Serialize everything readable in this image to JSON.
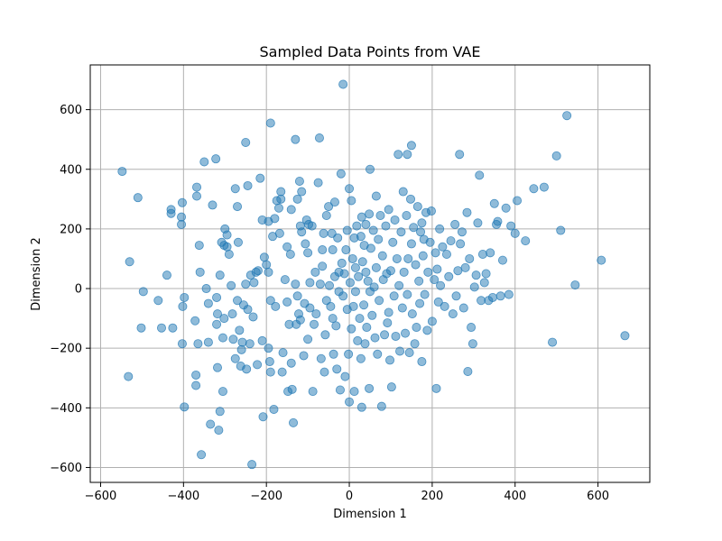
{
  "chart_data": {
    "type": "scatter",
    "title": "Sampled Data Points from VAE",
    "xlabel": "Dimension 1",
    "ylabel": "Dimension 2",
    "xlim": [
      -625,
      725
    ],
    "ylim": [
      -650,
      750
    ],
    "xticks": [
      -600,
      -400,
      -200,
      0,
      200,
      400,
      600
    ],
    "yticks": [
      -600,
      -400,
      -200,
      0,
      200,
      400,
      600
    ],
    "xtick_labels": [
      "−600",
      "−400",
      "−200",
      "0",
      "200",
      "400",
      "600"
    ],
    "ytick_labels": [
      "−600",
      "−400",
      "−200",
      "0",
      "200",
      "400",
      "600"
    ],
    "grid": true,
    "point_color": "#1f77b4",
    "point_alpha": 0.5,
    "points": [
      [
        -548,
        393
      ],
      [
        -530,
        90
      ],
      [
        -533,
        -295
      ],
      [
        -510,
        305
      ],
      [
        -497,
        -10
      ],
      [
        -502,
        -132
      ],
      [
        -461,
        -40
      ],
      [
        -453,
        -132
      ],
      [
        -440,
        45
      ],
      [
        -430,
        265
      ],
      [
        -430,
        252
      ],
      [
        -426,
        -132
      ],
      [
        -405,
        215
      ],
      [
        -405,
        240
      ],
      [
        -403,
        288
      ],
      [
        -403,
        -185
      ],
      [
        -398,
        -30
      ],
      [
        -402,
        -60
      ],
      [
        -398,
        -397
      ],
      [
        -370,
        -290
      ],
      [
        -370,
        -325
      ],
      [
        -372,
        -108
      ],
      [
        -368,
        310
      ],
      [
        -368,
        340
      ],
      [
        -365,
        -185
      ],
      [
        -362,
        145
      ],
      [
        -360,
        55
      ],
      [
        -357,
        -557
      ],
      [
        -350,
        425
      ],
      [
        -345,
        0
      ],
      [
        -340,
        -50
      ],
      [
        -340,
        -180
      ],
      [
        -335,
        -455
      ],
      [
        -330,
        280
      ],
      [
        -322,
        435
      ],
      [
        -320,
        -30
      ],
      [
        -318,
        -85
      ],
      [
        -320,
        -120
      ],
      [
        -318,
        -265
      ],
      [
        -315,
        -475
      ],
      [
        -312,
        45
      ],
      [
        -312,
        -412
      ],
      [
        -308,
        155
      ],
      [
        -305,
        -165
      ],
      [
        -305,
        -345
      ],
      [
        -302,
        -100
      ],
      [
        -302,
        145
      ],
      [
        -300,
        200
      ],
      [
        -295,
        180
      ],
      [
        -295,
        140
      ],
      [
        -290,
        115
      ],
      [
        -285,
        10
      ],
      [
        -282,
        -85
      ],
      [
        -280,
        -170
      ],
      [
        -275,
        335
      ],
      [
        -275,
        -235
      ],
      [
        -270,
        275
      ],
      [
        -268,
        155
      ],
      [
        -270,
        -40
      ],
      [
        -265,
        -140
      ],
      [
        -262,
        -260
      ],
      [
        -260,
        -205
      ],
      [
        -258,
        -180
      ],
      [
        -255,
        -55
      ],
      [
        -250,
        490
      ],
      [
        -250,
        15
      ],
      [
        -245,
        345
      ],
      [
        -248,
        -270
      ],
      [
        -245,
        -70
      ],
      [
        -240,
        -185
      ],
      [
        -238,
        45
      ],
      [
        -235,
        -590
      ],
      [
        -232,
        -95
      ],
      [
        -230,
        20
      ],
      [
        -225,
        55
      ],
      [
        -222,
        -255
      ],
      [
        -220,
        60
      ],
      [
        -215,
        370
      ],
      [
        -210,
        230
      ],
      [
        -205,
        105
      ],
      [
        -210,
        -175
      ],
      [
        -208,
        -430
      ],
      [
        -200,
        80
      ],
      [
        -195,
        225
      ],
      [
        -195,
        55
      ],
      [
        -195,
        -200
      ],
      [
        -192,
        -245
      ],
      [
        -190,
        -280
      ],
      [
        -190,
        555
      ],
      [
        -190,
        -40
      ],
      [
        -185,
        175
      ],
      [
        -180,
        235
      ],
      [
        -178,
        -60
      ],
      [
        -182,
        -405
      ],
      [
        -175,
        295
      ],
      [
        -170,
        270
      ],
      [
        -168,
        185
      ],
      [
        -165,
        325
      ],
      [
        -165,
        300
      ],
      [
        -162,
        -280
      ],
      [
        -160,
        -215
      ],
      [
        -155,
        30
      ],
      [
        -150,
        140
      ],
      [
        -150,
        -45
      ],
      [
        -148,
        -345
      ],
      [
        -145,
        -120
      ],
      [
        -140,
        265
      ],
      [
        -140,
        -250
      ],
      [
        -142,
        115
      ],
      [
        -138,
        -338
      ],
      [
        -135,
        -450
      ],
      [
        -130,
        500
      ],
      [
        -130,
        15
      ],
      [
        -128,
        -120
      ],
      [
        -125,
        300
      ],
      [
        -125,
        -25
      ],
      [
        -122,
        -85
      ],
      [
        -120,
        360
      ],
      [
        -118,
        210
      ],
      [
        -118,
        -105
      ],
      [
        -115,
        325
      ],
      [
        -115,
        190
      ],
      [
        -110,
        -225
      ],
      [
        -108,
        -50
      ],
      [
        -106,
        150
      ],
      [
        -103,
        230
      ],
      [
        -100,
        120
      ],
      [
        -100,
        -170
      ],
      [
        -98,
        215
      ],
      [
        -95,
        20
      ],
      [
        -95,
        -65
      ],
      [
        -90,
        210
      ],
      [
        -88,
        -345
      ],
      [
        -85,
        -120
      ],
      [
        -82,
        55
      ],
      [
        -80,
        -85
      ],
      [
        -75,
        355
      ],
      [
        -72,
        505
      ],
      [
        -70,
        15
      ],
      [
        -68,
        -235
      ],
      [
        -65,
        130
      ],
      [
        -65,
        75
      ],
      [
        -62,
        185
      ],
      [
        -60,
        -280
      ],
      [
        -58,
        -155
      ],
      [
        -55,
        245
      ],
      [
        -55,
        -40
      ],
      [
        -50,
        275
      ],
      [
        -48,
        10
      ],
      [
        -45,
        -60
      ],
      [
        -42,
        185
      ],
      [
        -40,
        130
      ],
      [
        -40,
        -100
      ],
      [
        -38,
        -220
      ],
      [
        -35,
        290
      ],
      [
        -35,
        40
      ],
      [
        -32,
        -125
      ],
      [
        -30,
        -270
      ],
      [
        -28,
        170
      ],
      [
        -25,
        55
      ],
      [
        -25,
        -10
      ],
      [
        -22,
        -340
      ],
      [
        -20,
        385
      ],
      [
        -18,
        85
      ],
      [
        -15,
        685
      ],
      [
        -15,
        -25
      ],
      [
        -12,
        50
      ],
      [
        -10,
        -295
      ],
      [
        -8,
        130
      ],
      [
        -5,
        195
      ],
      [
        -5,
        -70
      ],
      [
        -2,
        -220
      ],
      [
        0,
        335
      ],
      [
        0,
        -380
      ],
      [
        2,
        20
      ],
      [
        5,
        295
      ],
      [
        5,
        -135
      ],
      [
        8,
        100
      ],
      [
        10,
        -60
      ],
      [
        12,
        170
      ],
      [
        12,
        -345
      ],
      [
        15,
        70
      ],
      [
        15,
        -10
      ],
      [
        18,
        210
      ],
      [
        20,
        -175
      ],
      [
        22,
        40
      ],
      [
        25,
        -100
      ],
      [
        28,
        175
      ],
      [
        28,
        -235
      ],
      [
        30,
        240
      ],
      [
        30,
        -398
      ],
      [
        32,
        90
      ],
      [
        35,
        -55
      ],
      [
        36,
        145
      ],
      [
        38,
        -185
      ],
      [
        40,
        215
      ],
      [
        40,
        55
      ],
      [
        42,
        -130
      ],
      [
        45,
        25
      ],
      [
        48,
        250
      ],
      [
        48,
        -335
      ],
      [
        50,
        400
      ],
      [
        50,
        -10
      ],
      [
        52,
        135
      ],
      [
        55,
        -90
      ],
      [
        58,
        195
      ],
      [
        60,
        5
      ],
      [
        62,
        -165
      ],
      [
        65,
        310
      ],
      [
        65,
        70
      ],
      [
        68,
        -220
      ],
      [
        70,
        165
      ],
      [
        72,
        -40
      ],
      [
        75,
        245
      ],
      [
        78,
        -395
      ],
      [
        80,
        110
      ],
      [
        82,
        30
      ],
      [
        85,
        -155
      ],
      [
        88,
        210
      ],
      [
        90,
        50
      ],
      [
        92,
        -115
      ],
      [
        95,
        265
      ],
      [
        95,
        -80
      ],
      [
        98,
        -240
      ],
      [
        100,
        60
      ],
      [
        102,
        -330
      ],
      [
        105,
        155
      ],
      [
        108,
        -25
      ],
      [
        110,
        230
      ],
      [
        112,
        -160
      ],
      [
        115,
        100
      ],
      [
        118,
        450
      ],
      [
        120,
        10
      ],
      [
        122,
        -210
      ],
      [
        125,
        190
      ],
      [
        128,
        -65
      ],
      [
        130,
        325
      ],
      [
        132,
        55
      ],
      [
        135,
        -150
      ],
      [
        138,
        245
      ],
      [
        140,
        450
      ],
      [
        140,
        -20
      ],
      [
        142,
        100
      ],
      [
        145,
        -215
      ],
      [
        148,
        300
      ],
      [
        150,
        480
      ],
      [
        150,
        150
      ],
      [
        152,
        -85
      ],
      [
        155,
        205
      ],
      [
        158,
        -185
      ],
      [
        160,
        80
      ],
      [
        162,
        -130
      ],
      [
        165,
        275
      ],
      [
        168,
        25
      ],
      [
        170,
        -50
      ],
      [
        172,
        190
      ],
      [
        175,
        220
      ],
      [
        175,
        -245
      ],
      [
        178,
        110
      ],
      [
        180,
        165
      ],
      [
        182,
        -20
      ],
      [
        185,
        255
      ],
      [
        188,
        -140
      ],
      [
        190,
        55
      ],
      [
        195,
        155
      ],
      [
        198,
        260
      ],
      [
        200,
        -110
      ],
      [
        205,
        30
      ],
      [
        208,
        120
      ],
      [
        210,
        -335
      ],
      [
        212,
        65
      ],
      [
        215,
        -45
      ],
      [
        218,
        200
      ],
      [
        220,
        10
      ],
      [
        225,
        140
      ],
      [
        230,
        -60
      ],
      [
        235,
        115
      ],
      [
        240,
        40
      ],
      [
        245,
        160
      ],
      [
        250,
        -85
      ],
      [
        255,
        215
      ],
      [
        258,
        -25
      ],
      [
        262,
        60
      ],
      [
        266,
        450
      ],
      [
        268,
        150
      ],
      [
        272,
        190
      ],
      [
        276,
        -65
      ],
      [
        280,
        70
      ],
      [
        284,
        255
      ],
      [
        286,
        -278
      ],
      [
        290,
        100
      ],
      [
        294,
        -130
      ],
      [
        298,
        -185
      ],
      [
        302,
        5
      ],
      [
        306,
        45
      ],
      [
        310,
        220
      ],
      [
        314,
        380
      ],
      [
        318,
        -40
      ],
      [
        322,
        115
      ],
      [
        326,
        20
      ],
      [
        330,
        50
      ],
      [
        336,
        -40
      ],
      [
        340,
        120
      ],
      [
        346,
        -30
      ],
      [
        350,
        285
      ],
      [
        355,
        215
      ],
      [
        358,
        225
      ],
      [
        365,
        -25
      ],
      [
        370,
        95
      ],
      [
        378,
        270
      ],
      [
        385,
        -20
      ],
      [
        390,
        210
      ],
      [
        400,
        185
      ],
      [
        405,
        295
      ],
      [
        425,
        160
      ],
      [
        445,
        335
      ],
      [
        470,
        340
      ],
      [
        490,
        -180
      ],
      [
        500,
        445
      ],
      [
        510,
        195
      ],
      [
        525,
        580
      ],
      [
        545,
        12
      ],
      [
        608,
        95
      ],
      [
        665,
        -158
      ]
    ]
  }
}
